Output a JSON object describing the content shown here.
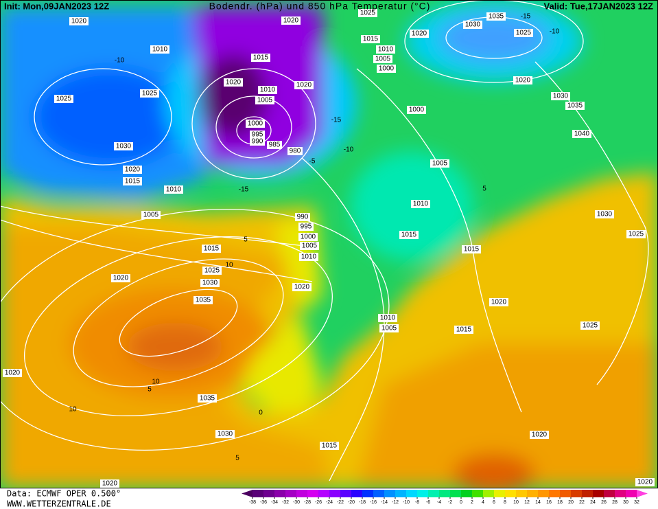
{
  "header": {
    "init": "Init: Mon,09JAN2023 12Z",
    "title": "Bodendr. (hPa) und 850 hPa Temperatur (°C)",
    "valid": "Valid: Tue,17JAN2023 12Z"
  },
  "footer": {
    "source": "Data: ECMWF OPER 0.500°",
    "website": "WWW.WETTERZENTRALE.DE"
  },
  "isobar_labels": [
    "1020",
    "1010",
    "1025",
    "1025",
    "1030",
    "1020",
    "1015",
    "1010",
    "1005",
    "1015",
    "1020",
    "1010",
    "1005",
    "1000",
    "995",
    "990",
    "985",
    "980",
    "1020",
    "1020",
    "1025",
    "1015",
    "1010",
    "1005",
    "1000",
    "1020",
    "1035",
    "1030",
    "1025",
    "1020",
    "1030",
    "1035",
    "1040",
    "1000",
    "1005",
    "1010",
    "1015",
    "1015",
    "990",
    "995",
    "1000",
    "1005",
    "1010",
    "1020",
    "1015",
    "1025",
    "1030",
    "1035",
    "1020",
    "1020",
    "1010",
    "1005",
    "1015",
    "1025",
    "1030",
    "1025",
    "1020",
    "1035",
    "1030",
    "1015",
    "1020",
    "1020",
    "1020"
  ],
  "temperature_labels": [
    "-10",
    "-15",
    "-10",
    "-5",
    "5",
    "10",
    "10",
    "5",
    "10",
    "0",
    "5",
    "5",
    "-15",
    "-10",
    "-15"
  ],
  "legend": {
    "ticks": [
      -38,
      -36,
      -34,
      -32,
      -30,
      -28,
      -26,
      -24,
      -22,
      -20,
      -18,
      -16,
      -14,
      -12,
      -10,
      -8,
      -6,
      -4,
      -2,
      0,
      2,
      4,
      6,
      8,
      10,
      12,
      14,
      16,
      18,
      20,
      22,
      24,
      26,
      28,
      30,
      32
    ],
    "colors": [
      "#4b0060",
      "#5a0078",
      "#6e0090",
      "#8a00aa",
      "#a400c4",
      "#c000de",
      "#d400f0",
      "#b400ff",
      "#8a00ff",
      "#5a00ff",
      "#2a00ff",
      "#0030ff",
      "#0060ff",
      "#0090ff",
      "#00b4ff",
      "#00d8ff",
      "#00f0e8",
      "#00f0b0",
      "#00e880",
      "#00e050",
      "#00d020",
      "#40e000",
      "#a0f000",
      "#e8f000",
      "#ffe000",
      "#ffc800",
      "#ffb000",
      "#ff9600",
      "#ff7800",
      "#f05a00",
      "#d83c00",
      "#c02000",
      "#a80000",
      "#c00040",
      "#e00080",
      "#f000b0",
      "#ff40e0"
    ]
  }
}
